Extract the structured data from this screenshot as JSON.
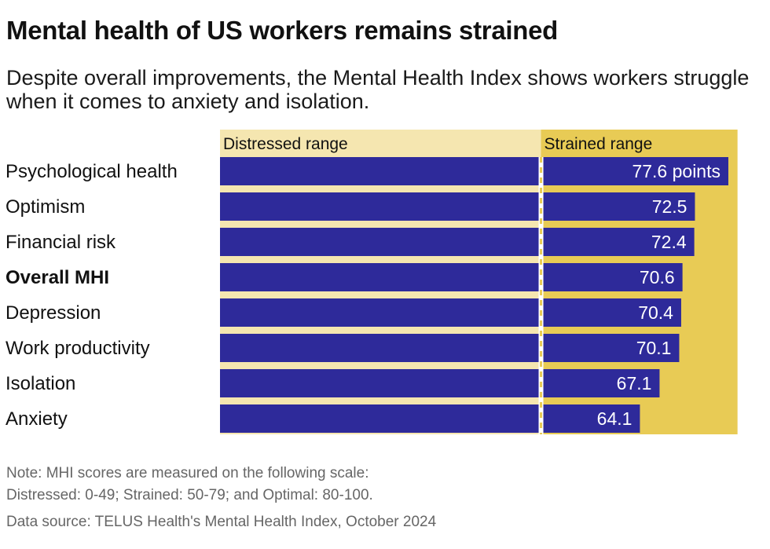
{
  "title": "Mental health of US workers remains strained",
  "subtitle": "Despite overall improvements, the Mental Health Index shows workers struggle when it comes to anxiety and isolation.",
  "chart_data": {
    "type": "bar",
    "orientation": "horizontal",
    "categories": [
      "Psychological health",
      "Optimism",
      "Financial risk",
      "Overall MHI",
      "Depression",
      "Work productivity",
      "Isolation",
      "Anxiety"
    ],
    "highlight_category": "Overall MHI",
    "values": [
      77.6,
      72.5,
      72.4,
      70.6,
      70.4,
      70.1,
      67.1,
      64.1
    ],
    "value_labels": [
      "77.6 points",
      "72.5",
      "72.4",
      "70.6",
      "70.4",
      "70.1",
      "67.1",
      "64.1"
    ],
    "xlim": [
      0,
      80
    ],
    "ranges": [
      {
        "label": "Distressed range",
        "from": 0,
        "to": 49,
        "color": "#f5e6b0"
      },
      {
        "label": "Strained range",
        "from": 49,
        "to": 79,
        "color": "#e8cb55"
      }
    ],
    "threshold": 49,
    "bar_color": "#2e2a9a"
  },
  "notes": {
    "line1": "Note: MHI scores are measured on the following scale:",
    "line2": "Distressed: 0-49; Strained: 50-79; and Optimal: 80-100.",
    "source": "Data source: TELUS Health's Mental Health Index, October 2024"
  }
}
